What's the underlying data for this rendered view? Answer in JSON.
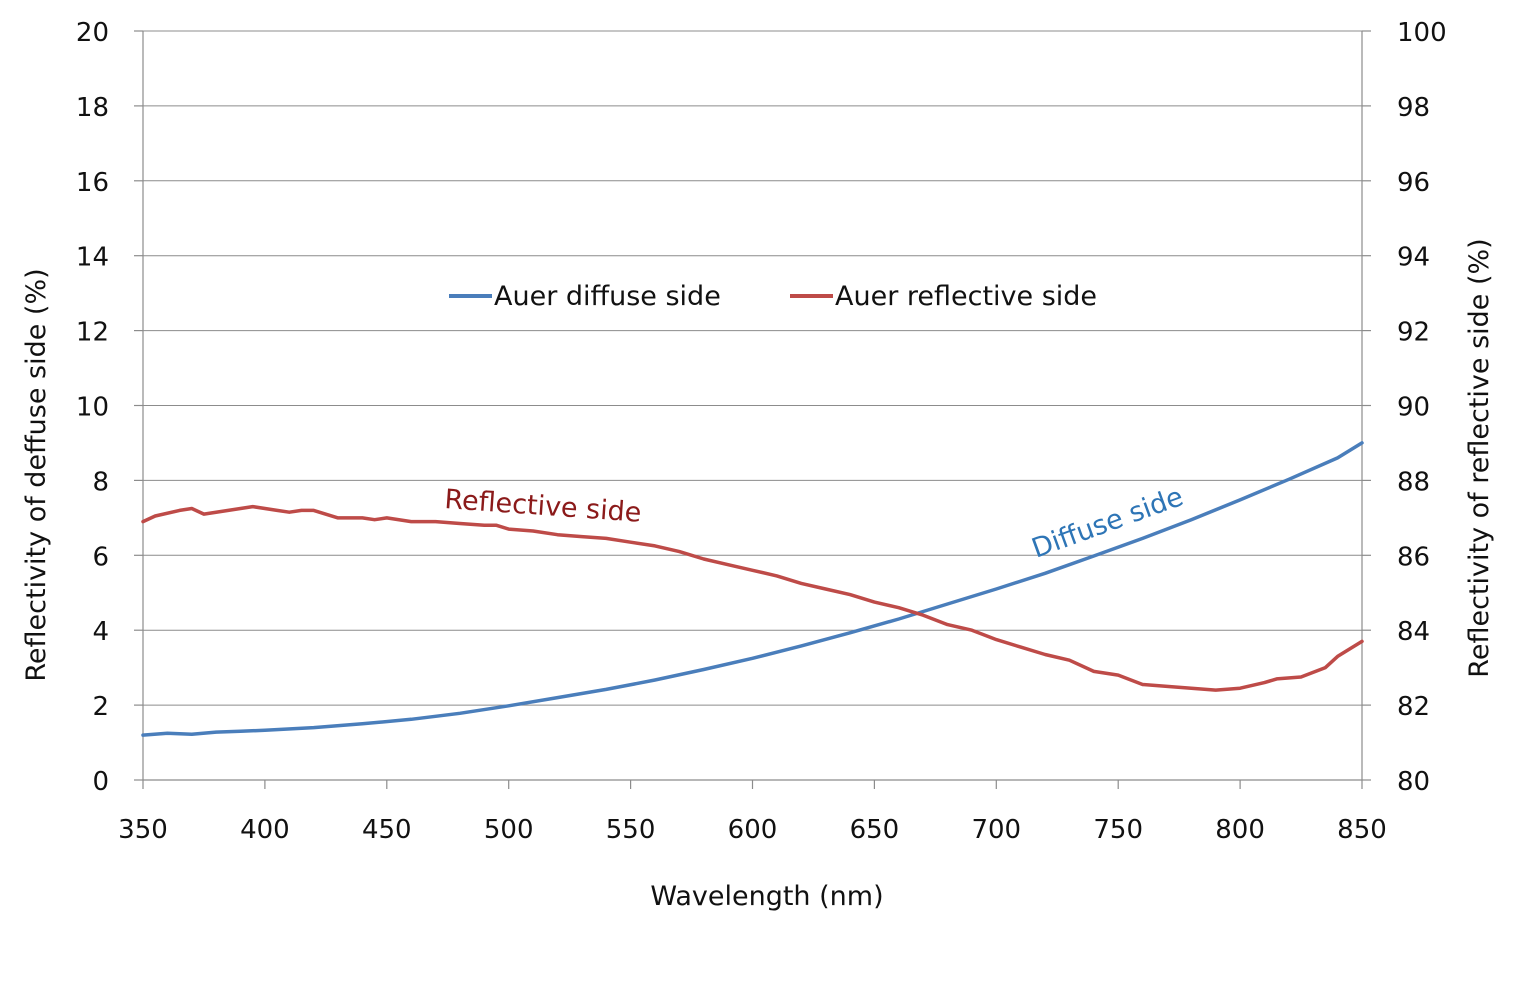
{
  "chart_data": {
    "type": "line",
    "xlabel": "Wavelength (nm)",
    "ylabel_left": "Reflectivity of deffuse side (%)",
    "ylabel_right": "Reflectivity of reflective side (%)",
    "xlim": [
      350,
      850
    ],
    "ylim_left": [
      0,
      20
    ],
    "ylim_right": [
      80,
      100
    ],
    "x_ticks": [
      350,
      400,
      450,
      500,
      550,
      600,
      650,
      700,
      750,
      800,
      850
    ],
    "y_ticks_left": [
      0,
      2,
      4,
      6,
      8,
      10,
      12,
      14,
      16,
      18,
      20
    ],
    "y_ticks_right": [
      80,
      82,
      84,
      86,
      88,
      90,
      92,
      94,
      96,
      98,
      100
    ],
    "grid": "horizontal",
    "legend": {
      "placement": "center-top"
    },
    "series": [
      {
        "name": "Auer diffuse side",
        "axis": "left",
        "color": "#4a7ebb",
        "x": [
          350,
          360,
          370,
          380,
          390,
          400,
          420,
          440,
          460,
          480,
          500,
          520,
          540,
          560,
          580,
          600,
          620,
          640,
          660,
          680,
          700,
          720,
          740,
          760,
          780,
          800,
          820,
          840,
          850
        ],
        "y": [
          1.2,
          1.25,
          1.22,
          1.28,
          1.3,
          1.33,
          1.4,
          1.5,
          1.62,
          1.78,
          1.98,
          2.2,
          2.42,
          2.67,
          2.95,
          3.25,
          3.58,
          3.93,
          4.3,
          4.7,
          5.1,
          5.52,
          5.98,
          6.45,
          6.95,
          7.48,
          8.03,
          8.6,
          9.0
        ]
      },
      {
        "name": "Auer reflective side",
        "axis": "right",
        "color": "#be4b48",
        "x": [
          350,
          355,
          365,
          370,
          375,
          385,
          395,
          405,
          410,
          415,
          420,
          430,
          440,
          445,
          450,
          460,
          470,
          480,
          490,
          495,
          500,
          510,
          520,
          530,
          540,
          550,
          560,
          570,
          580,
          590,
          600,
          610,
          620,
          630,
          640,
          650,
          660,
          670,
          680,
          690,
          700,
          710,
          720,
          730,
          740,
          750,
          760,
          770,
          780,
          790,
          800,
          810,
          815,
          825,
          835,
          840,
          850
        ],
        "y": [
          86.9,
          87.05,
          87.2,
          87.25,
          87.1,
          87.2,
          87.3,
          87.2,
          87.15,
          87.2,
          87.2,
          87.0,
          87.0,
          86.95,
          87.0,
          86.9,
          86.9,
          86.85,
          86.8,
          86.8,
          86.7,
          86.65,
          86.55,
          86.5,
          86.45,
          86.35,
          86.25,
          86.1,
          85.9,
          85.75,
          85.6,
          85.45,
          85.25,
          85.1,
          84.95,
          84.75,
          84.6,
          84.4,
          84.15,
          84.0,
          83.75,
          83.55,
          83.35,
          83.2,
          82.9,
          82.8,
          82.55,
          82.5,
          82.45,
          82.4,
          82.45,
          82.6,
          82.7,
          82.75,
          83.0,
          83.3,
          83.7
        ]
      }
    ],
    "annotations": [
      {
        "text": "Reflective side",
        "color": "#8b1a1a"
      },
      {
        "text": "Diffuse side",
        "color": "#2e75b6"
      }
    ]
  }
}
